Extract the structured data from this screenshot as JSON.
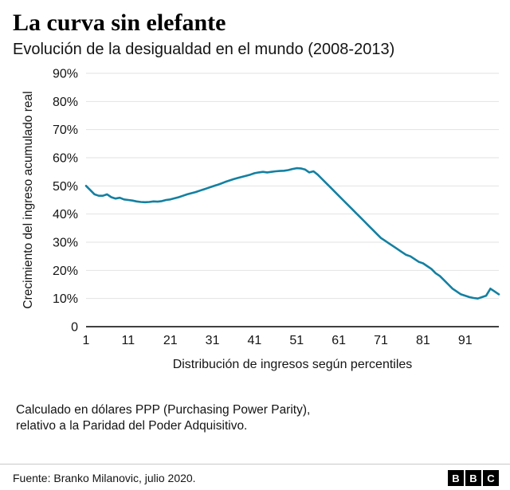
{
  "header": {
    "title": "La curva sin elefante",
    "subtitle": "Evolución de la desigualdad en el mundo (2008-2013)"
  },
  "chart_data": {
    "type": "line",
    "title": "La curva sin elefante",
    "subtitle": "Evolución de la desigualdad en el mundo (2008-2013)",
    "xlabel": "Distribución de ingresos según percentiles",
    "ylabel": "Crecimiento del ingreso acumulado real",
    "xlim": [
      1,
      99
    ],
    "ylim": [
      0,
      90
    ],
    "x_ticks": [
      1,
      11,
      21,
      31,
      41,
      51,
      61,
      71,
      81,
      91
    ],
    "y_tick_values": [
      0,
      10,
      20,
      30,
      40,
      50,
      60,
      70,
      80,
      90
    ],
    "y_tick_labels": [
      "0",
      "10%",
      "20%",
      "30%",
      "40%",
      "50%",
      "60%",
      "70%",
      "80%",
      "90%"
    ],
    "grid": "horizontal",
    "legend": "none",
    "line_color": "#1380A1",
    "series": [
      {
        "name": "Crecimiento del ingreso acumulado real 2008-2013",
        "x": [
          1,
          2,
          3,
          4,
          5,
          6,
          7,
          8,
          9,
          10,
          11,
          12,
          13,
          14,
          15,
          16,
          17,
          18,
          19,
          20,
          21,
          22,
          23,
          24,
          25,
          26,
          27,
          28,
          29,
          30,
          31,
          32,
          33,
          34,
          35,
          36,
          37,
          38,
          39,
          40,
          41,
          42,
          43,
          44,
          45,
          46,
          47,
          48,
          49,
          50,
          51,
          52,
          53,
          54,
          55,
          56,
          57,
          58,
          59,
          60,
          61,
          62,
          63,
          64,
          65,
          66,
          67,
          68,
          69,
          70,
          71,
          72,
          73,
          74,
          75,
          76,
          77,
          78,
          79,
          80,
          81,
          82,
          83,
          84,
          85,
          86,
          87,
          88,
          89,
          90,
          91,
          92,
          93,
          94,
          95,
          96,
          97,
          98,
          99
        ],
        "y": [
          50,
          48.5,
          47,
          46.5,
          46.5,
          47,
          46,
          45.5,
          45.8,
          45.2,
          45,
          44.8,
          44.5,
          44.3,
          44.2,
          44.3,
          44.5,
          44.4,
          44.6,
          45,
          45.2,
          45.6,
          46,
          46.5,
          47,
          47.4,
          47.8,
          48.3,
          48.8,
          49.3,
          49.8,
          50.3,
          50.8,
          51.4,
          51.9,
          52.4,
          52.8,
          53.2,
          53.6,
          54,
          54.5,
          54.8,
          55,
          54.8,
          55,
          55.2,
          55.3,
          55.4,
          55.6,
          56,
          56.3,
          56.2,
          55.8,
          54.8,
          55.2,
          54,
          52.5,
          51,
          49.5,
          48,
          46.5,
          45,
          43.5,
          42,
          40.5,
          39,
          37.5,
          36,
          34.5,
          33,
          31.5,
          30.5,
          29.5,
          28.5,
          27.5,
          26.5,
          25.5,
          25,
          24,
          23,
          22.5,
          21.5,
          20.5,
          19,
          18,
          16.5,
          15,
          13.5,
          12.5,
          11.5,
          11,
          10.5,
          10.2,
          10,
          10.5,
          11,
          13.5,
          12.5,
          11.5
        ]
      }
    ]
  },
  "footnote": {
    "line1": "Calculado en dólares PPP (Purchasing Power Parity),",
    "line2": "relativo a la Paridad del Poder Adquisitivo."
  },
  "footer": {
    "source": "Fuente: Branko Milanovic, julio 2020.",
    "logo_letters": [
      "B",
      "B",
      "C"
    ]
  }
}
